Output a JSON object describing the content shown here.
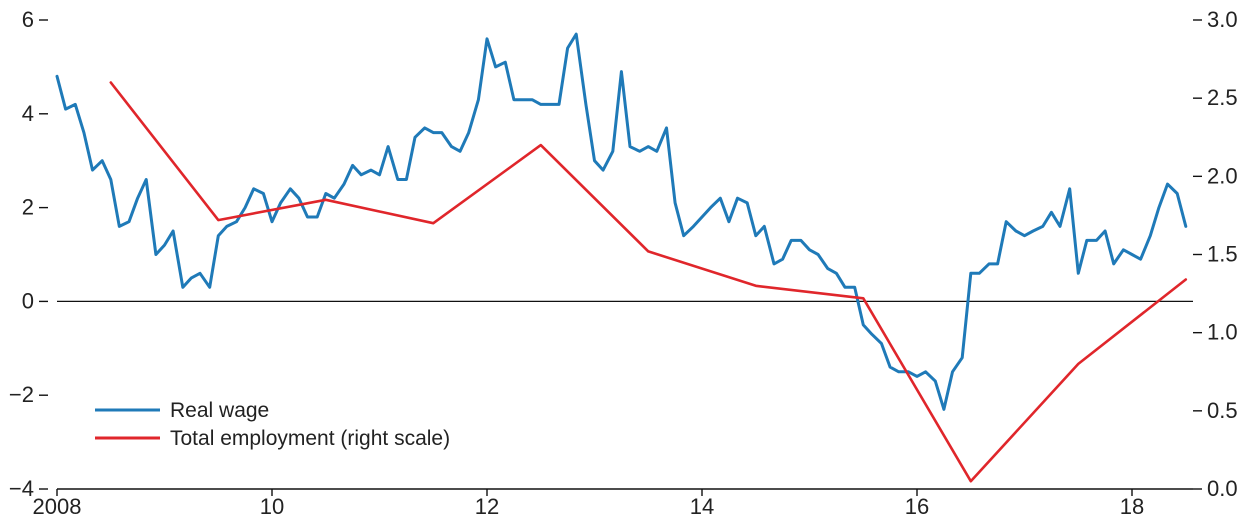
{
  "chart_data": {
    "type": "line",
    "title": "",
    "xlabel": "",
    "ylabel": "",
    "xlim": [
      2008,
      2018.5
    ],
    "x_tick_labels": [
      {
        "x": 2008,
        "label": "2008"
      },
      {
        "x": 2010,
        "label": "10"
      },
      {
        "x": 2012,
        "label": "12"
      },
      {
        "x": 2014,
        "label": "14"
      },
      {
        "x": 2016,
        "label": "16"
      },
      {
        "x": 2018,
        "label": "18"
      }
    ],
    "y_left": {
      "ylim": [
        -4,
        6
      ],
      "ticks": [
        {
          "v": -4,
          "label": "−4"
        },
        {
          "v": -2,
          "label": "−2"
        },
        {
          "v": 0,
          "label": "0"
        },
        {
          "v": 2,
          "label": "2"
        },
        {
          "v": 4,
          "label": "4"
        },
        {
          "v": 6,
          "label": "6"
        }
      ]
    },
    "y_right": {
      "ylim": [
        0.0,
        3.0
      ],
      "ticks": [
        {
          "v": 0.0,
          "label": "0.0"
        },
        {
          "v": 0.5,
          "label": "0.5"
        },
        {
          "v": 1.0,
          "label": "1.0"
        },
        {
          "v": 1.5,
          "label": "1.5"
        },
        {
          "v": 2.0,
          "label": "2.0"
        },
        {
          "v": 2.5,
          "label": "2.5"
        },
        {
          "v": 3.0,
          "label": "3.0"
        }
      ]
    },
    "zero_line": true,
    "legend_position": "bottom-left",
    "series": [
      {
        "name": "Real wage",
        "axis": "left",
        "color": "#1f7ab8",
        "points": [
          [
            2008.0,
            4.8
          ],
          [
            2008.08,
            4.1
          ],
          [
            2008.17,
            4.2
          ],
          [
            2008.25,
            3.6
          ],
          [
            2008.33,
            2.8
          ],
          [
            2008.42,
            3.0
          ],
          [
            2008.5,
            2.6
          ],
          [
            2008.58,
            1.6
          ],
          [
            2008.67,
            1.7
          ],
          [
            2008.75,
            2.2
          ],
          [
            2008.83,
            2.6
          ],
          [
            2008.92,
            1.0
          ],
          [
            2009.0,
            1.2
          ],
          [
            2009.08,
            1.5
          ],
          [
            2009.17,
            0.3
          ],
          [
            2009.25,
            0.5
          ],
          [
            2009.33,
            0.6
          ],
          [
            2009.42,
            0.3
          ],
          [
            2009.5,
            1.4
          ],
          [
            2009.58,
            1.6
          ],
          [
            2009.67,
            1.7
          ],
          [
            2009.75,
            2.0
          ],
          [
            2009.83,
            2.4
          ],
          [
            2009.92,
            2.3
          ],
          [
            2010.0,
            1.7
          ],
          [
            2010.08,
            2.1
          ],
          [
            2010.17,
            2.4
          ],
          [
            2010.25,
            2.2
          ],
          [
            2010.33,
            1.8
          ],
          [
            2010.42,
            1.8
          ],
          [
            2010.5,
            2.3
          ],
          [
            2010.58,
            2.2
          ],
          [
            2010.67,
            2.5
          ],
          [
            2010.75,
            2.9
          ],
          [
            2010.83,
            2.7
          ],
          [
            2010.92,
            2.8
          ],
          [
            2011.0,
            2.7
          ],
          [
            2011.08,
            3.3
          ],
          [
            2011.17,
            2.6
          ],
          [
            2011.25,
            2.6
          ],
          [
            2011.33,
            3.5
          ],
          [
            2011.42,
            3.7
          ],
          [
            2011.5,
            3.6
          ],
          [
            2011.58,
            3.6
          ],
          [
            2011.67,
            3.3
          ],
          [
            2011.75,
            3.2
          ],
          [
            2011.83,
            3.6
          ],
          [
            2011.92,
            4.3
          ],
          [
            2012.0,
            5.6
          ],
          [
            2012.08,
            5.0
          ],
          [
            2012.17,
            5.1
          ],
          [
            2012.25,
            4.3
          ],
          [
            2012.33,
            4.3
          ],
          [
            2012.42,
            4.3
          ],
          [
            2012.5,
            4.2
          ],
          [
            2012.58,
            4.2
          ],
          [
            2012.67,
            4.2
          ],
          [
            2012.75,
            5.4
          ],
          [
            2012.83,
            5.7
          ],
          [
            2012.92,
            4.2
          ],
          [
            2013.0,
            3.0
          ],
          [
            2013.08,
            2.8
          ],
          [
            2013.17,
            3.2
          ],
          [
            2013.25,
            4.9
          ],
          [
            2013.33,
            3.3
          ],
          [
            2013.42,
            3.2
          ],
          [
            2013.5,
            3.3
          ],
          [
            2013.58,
            3.2
          ],
          [
            2013.67,
            3.7
          ],
          [
            2013.75,
            2.1
          ],
          [
            2013.83,
            1.4
          ],
          [
            2013.92,
            1.6
          ],
          [
            2014.0,
            1.8
          ],
          [
            2014.08,
            2.0
          ],
          [
            2014.17,
            2.2
          ],
          [
            2014.25,
            1.7
          ],
          [
            2014.33,
            2.2
          ],
          [
            2014.42,
            2.1
          ],
          [
            2014.5,
            1.4
          ],
          [
            2014.58,
            1.6
          ],
          [
            2014.67,
            0.8
          ],
          [
            2014.75,
            0.9
          ],
          [
            2014.83,
            1.3
          ],
          [
            2014.92,
            1.3
          ],
          [
            2015.0,
            1.1
          ],
          [
            2015.08,
            1.0
          ],
          [
            2015.17,
            0.7
          ],
          [
            2015.25,
            0.6
          ],
          [
            2015.33,
            0.3
          ],
          [
            2015.42,
            0.3
          ],
          [
            2015.5,
            -0.5
          ],
          [
            2015.58,
            -0.7
          ],
          [
            2015.67,
            -0.9
          ],
          [
            2015.75,
            -1.4
          ],
          [
            2015.83,
            -1.5
          ],
          [
            2015.92,
            -1.5
          ],
          [
            2016.0,
            -1.6
          ],
          [
            2016.08,
            -1.5
          ],
          [
            2016.17,
            -1.7
          ],
          [
            2016.25,
            -2.3
          ],
          [
            2016.33,
            -1.5
          ],
          [
            2016.42,
            -1.2
          ],
          [
            2016.5,
            0.6
          ],
          [
            2016.58,
            0.6
          ],
          [
            2016.67,
            0.8
          ],
          [
            2016.75,
            0.8
          ],
          [
            2016.83,
            1.7
          ],
          [
            2016.92,
            1.5
          ],
          [
            2017.0,
            1.4
          ],
          [
            2017.08,
            1.5
          ],
          [
            2017.17,
            1.6
          ],
          [
            2017.25,
            1.9
          ],
          [
            2017.33,
            1.6
          ],
          [
            2017.42,
            2.4
          ],
          [
            2017.5,
            0.6
          ],
          [
            2017.58,
            1.3
          ],
          [
            2017.67,
            1.3
          ],
          [
            2017.75,
            1.5
          ],
          [
            2017.83,
            0.8
          ],
          [
            2017.92,
            1.1
          ],
          [
            2018.0,
            1.0
          ],
          [
            2018.08,
            0.9
          ],
          [
            2018.17,
            1.4
          ],
          [
            2018.25,
            2.0
          ],
          [
            2018.33,
            2.5
          ],
          [
            2018.42,
            2.3
          ],
          [
            2018.5,
            1.6
          ]
        ]
      },
      {
        "name": "Total employment (right scale)",
        "axis": "right",
        "color": "#e0262b",
        "points": [
          [
            2008.5,
            2.6
          ],
          [
            2009.5,
            1.72
          ],
          [
            2010.5,
            1.85
          ],
          [
            2011.5,
            1.7
          ],
          [
            2012.5,
            2.2
          ],
          [
            2013.5,
            1.52
          ],
          [
            2014.5,
            1.3
          ],
          [
            2015.5,
            1.22
          ],
          [
            2016.5,
            0.05
          ],
          [
            2017.5,
            0.8
          ],
          [
            2018.5,
            1.34
          ]
        ]
      }
    ]
  }
}
